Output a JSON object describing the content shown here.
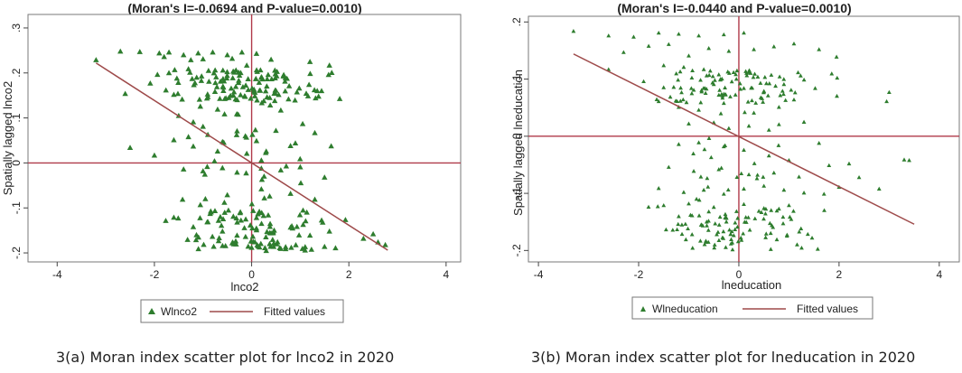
{
  "chart_data": [
    {
      "type": "scatter",
      "title": "(Moran's I=-0.0694 and P-value=0.0010)",
      "xlabel": "lnco2",
      "ylabel": "Spatially lagged lnco2",
      "xlim": [
        -4.6,
        4.3
      ],
      "ylim": [
        -0.22,
        0.33
      ],
      "xticks": [
        -4,
        -2,
        0,
        2,
        4
      ],
      "xtick_labels": [
        "-4",
        "-2",
        "0",
        "2",
        "4"
      ],
      "yticks": [
        -0.2,
        -0.1,
        0,
        0.1,
        0.2,
        0.3
      ],
      "ytick_labels": [
        "-.2",
        "-.1",
        "0",
        ".1",
        ".2",
        ".3"
      ],
      "reference_lines": {
        "x": 0,
        "y": 0
      },
      "legend": [
        "Wlnco2",
        "Fitted values"
      ],
      "legend_position": "bottom",
      "fit_line": {
        "x": [
          -3.2,
          2.8
        ],
        "y": [
          0.222,
          -0.194
        ]
      },
      "caption": "3(a) Moran index scatter plot for lnco2 in 2020",
      "point_count": 330,
      "series": [
        {
          "name": "Wlnco2",
          "points": [
            [
              -2.7,
              0.248
            ],
            [
              -2.3,
              0.247
            ],
            [
              -1.6,
              0.152
            ],
            [
              -1.3,
              0.209
            ],
            [
              -0.9,
              0.147
            ],
            [
              0.2,
              0.191
            ],
            [
              0.5,
              0.161
            ],
            [
              0.6,
              0.117
            ],
            [
              -1.5,
              0.105
            ],
            [
              -1.2,
              0.091
            ],
            [
              -0.7,
              0.119
            ],
            [
              1.05,
              0.087
            ],
            [
              -3.2,
              0.229
            ],
            [
              -2.6,
              0.154
            ],
            [
              -2.5,
              0.034
            ],
            [
              -2.0,
              0.017
            ],
            [
              -1.9,
              0.244
            ],
            [
              -1.7,
              0.246
            ],
            [
              -1.4,
              0.24
            ],
            [
              -1.1,
              0.244
            ],
            [
              -0.8,
              0.246
            ],
            [
              -0.5,
              0.24
            ],
            [
              -0.2,
              0.246
            ],
            [
              0.1,
              0.243
            ],
            [
              -1.8,
              0.236
            ],
            [
              -1.0,
              0.231
            ],
            [
              -0.4,
              0.232
            ],
            [
              0.4,
              0.23
            ],
            [
              1.2,
              0.225
            ],
            [
              1.6,
              0.217
            ],
            [
              -1.25,
              0.229
            ],
            [
              -0.1,
              0.217
            ],
            [
              -1.6,
              0.051
            ],
            [
              -1.3,
              0.058
            ],
            [
              -1.2,
              0.037
            ],
            [
              -0.9,
              0.063
            ],
            [
              -0.6,
              0.047
            ],
            [
              0.1,
              0.049
            ],
            [
              0.5,
              0.072
            ],
            [
              0.9,
              0.044
            ],
            [
              -0.3,
              0.071
            ],
            [
              -0.7,
              0.026
            ],
            [
              0.2,
              0.006
            ],
            [
              -0.1,
              0.021
            ],
            [
              0.3,
              0.026
            ],
            [
              0.8,
              0.038
            ],
            [
              -1.0,
              0.081
            ],
            [
              1.3,
              0.067
            ],
            [
              -1.4,
              -0.014
            ],
            [
              -1.0,
              -0.018
            ],
            [
              -0.6,
              -0.011
            ],
            [
              -0.3,
              -0.021
            ],
            [
              0.2,
              -0.012
            ],
            [
              0.6,
              -0.016
            ],
            [
              1.0,
              -0.009
            ],
            [
              1.5,
              -0.032
            ],
            [
              -1.6,
              -0.121
            ],
            [
              -1.2,
              -0.142
            ],
            [
              -0.9,
              -0.131
            ],
            [
              -0.6,
              -0.152
            ],
            [
              -0.3,
              -0.161
            ],
            [
              0.1,
              -0.149
            ],
            [
              0.4,
              -0.156
            ],
            [
              0.8,
              -0.143
            ],
            [
              1.2,
              -0.161
            ],
            [
              1.6,
              -0.152
            ],
            [
              -0.4,
              -0.178
            ],
            [
              0.0,
              -0.188
            ],
            [
              0.3,
              -0.195
            ],
            [
              0.7,
              -0.191
            ],
            [
              1.1,
              -0.194
            ],
            [
              1.5,
              -0.186
            ],
            [
              2.3,
              -0.168
            ],
            [
              2.6,
              -0.176
            ],
            [
              2.75,
              -0.182
            ],
            [
              2.5,
              -0.158
            ],
            [
              0.2,
              -0.058
            ],
            [
              0.8,
              -0.068
            ],
            [
              1.3,
              -0.081
            ],
            [
              -0.5,
              -0.071
            ]
          ]
        }
      ]
    },
    {
      "type": "scatter",
      "title": "(Moran's I=-0.0440 and P-value=0.0010)",
      "xlabel": "lneducation",
      "ylabel": "Spatially lagged lneducation",
      "xlim": [
        -4.2,
        4.4
      ],
      "ylim": [
        -0.22,
        0.21
      ],
      "xticks": [
        -4,
        -2,
        0,
        2,
        4
      ],
      "xtick_labels": [
        "-4",
        "-2",
        "0",
        "2",
        "4"
      ],
      "yticks": [
        -0.2,
        -0.1,
        0,
        0.1,
        0.2
      ],
      "ytick_labels": [
        "-.2",
        "-.1",
        "0",
        ".1",
        ".2"
      ],
      "reference_lines": {
        "x": 0,
        "y": 0
      },
      "legend": [
        "Wlneducation",
        "Fitted values"
      ],
      "legend_position": "bottom",
      "fit_line": {
        "x": [
          -3.3,
          3.5
        ],
        "y": [
          0.144,
          -0.154
        ]
      },
      "caption": "3(b) Moran index scatter plot for lneducation in 2020",
      "point_count": 300,
      "series": [
        {
          "name": "Wlneducation",
          "points": [
            [
              -3.3,
              0.184
            ],
            [
              -2.6,
              0.176
            ],
            [
              -2.1,
              0.174
            ],
            [
              -1.6,
              0.181
            ],
            [
              -1.2,
              0.179
            ],
            [
              -0.8,
              0.176
            ],
            [
              -0.3,
              0.178
            ],
            [
              0.1,
              0.181
            ],
            [
              -2.3,
              0.147
            ],
            [
              -1.8,
              0.158
            ],
            [
              -1.4,
              0.161
            ],
            [
              -1.0,
              0.141
            ],
            [
              -0.6,
              0.154
            ],
            [
              -0.2,
              0.149
            ],
            [
              0.3,
              0.152
            ],
            [
              0.7,
              0.157
            ],
            [
              1.1,
              0.162
            ],
            [
              1.6,
              0.152
            ],
            [
              1.95,
              0.139
            ],
            [
              -1.5,
              0.124
            ],
            [
              -1.1,
              0.121
            ],
            [
              -0.7,
              0.117
            ],
            [
              -0.4,
              0.108
            ],
            [
              0.2,
              0.112
            ],
            [
              -2.6,
              0.117
            ],
            [
              -1.9,
              0.096
            ],
            [
              -1.3,
              0.086
            ],
            [
              -0.9,
              0.081
            ],
            [
              -0.5,
              0.091
            ],
            [
              0.1,
              0.084
            ],
            [
              0.5,
              0.078
            ],
            [
              0.9,
              0.091
            ],
            [
              -1.6,
              0.061
            ],
            [
              -1.2,
              0.051
            ],
            [
              -0.8,
              0.046
            ],
            [
              -0.3,
              0.058
            ],
            [
              0.3,
              0.041
            ],
            [
              0.8,
              0.051
            ],
            [
              1.1,
              0.064
            ],
            [
              2.95,
              0.061
            ],
            [
              3.0,
              0.077
            ],
            [
              -1.0,
              0.022
            ],
            [
              -0.5,
              0.024
            ],
            [
              -0.2,
              0.014
            ],
            [
              0.2,
              0.018
            ],
            [
              0.6,
              0.011
            ],
            [
              1.3,
              0.025
            ],
            [
              1.6,
              -0.012
            ],
            [
              -1.2,
              -0.014
            ],
            [
              -0.8,
              -0.011
            ],
            [
              -0.3,
              -0.018
            ],
            [
              0.1,
              -0.024
            ],
            [
              0.6,
              -0.034
            ],
            [
              1.0,
              -0.042
            ],
            [
              1.8,
              -0.051
            ],
            [
              2.2,
              -0.048
            ],
            [
              -1.4,
              -0.054
            ],
            [
              -0.9,
              -0.061
            ],
            [
              -0.4,
              -0.058
            ],
            [
              0.2,
              -0.067
            ],
            [
              0.7,
              -0.064
            ],
            [
              1.2,
              -0.071
            ],
            [
              2.4,
              -0.072
            ],
            [
              3.3,
              -0.041
            ],
            [
              3.4,
              -0.042
            ],
            [
              -1.6,
              -0.091
            ],
            [
              -1.1,
              -0.098
            ],
            [
              -0.7,
              -0.094
            ],
            [
              -0.3,
              -0.101
            ],
            [
              0.1,
              -0.092
            ],
            [
              0.5,
              -0.087
            ],
            [
              0.9,
              -0.094
            ],
            [
              1.3,
              -0.099
            ],
            [
              1.7,
              -0.101
            ],
            [
              -1.5,
              -0.121
            ],
            [
              -1.0,
              -0.118
            ],
            [
              -0.5,
              -0.124
            ],
            [
              0.1,
              -0.119
            ],
            [
              0.5,
              -0.126
            ],
            [
              1.0,
              -0.121
            ],
            [
              2.0,
              -0.089
            ],
            [
              2.8,
              -0.092
            ],
            [
              -0.6,
              -0.132
            ],
            [
              0.4,
              -0.131
            ],
            [
              0.8,
              -0.127
            ]
          ]
        }
      ]
    }
  ]
}
